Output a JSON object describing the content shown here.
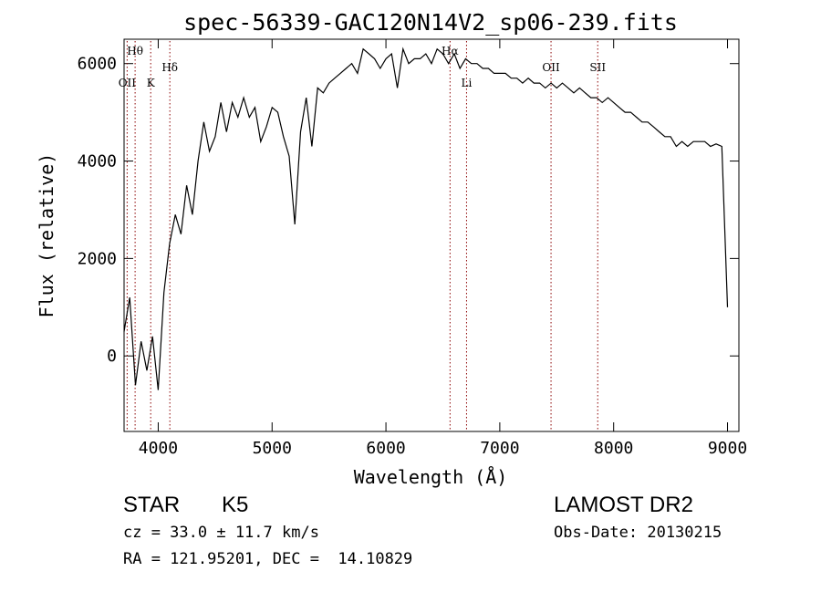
{
  "chart_data": {
    "type": "line",
    "title": "spec-56339-GAC120N14V2_sp06-239.fits",
    "xlabel": "Wavelength (Å)",
    "ylabel": "Flux (relative)",
    "xlim": [
      3700,
      9100
    ],
    "ylim": [
      -1550,
      6500
    ],
    "xticks": [
      4000,
      5000,
      6000,
      7000,
      8000,
      9000
    ],
    "yticks": [
      0,
      2000,
      4000,
      6000
    ],
    "grid": false,
    "line_color": "#000000",
    "marker_line_color": "#8b0000",
    "lines": [
      {
        "label": "OII",
        "x": 3727,
        "row": "low"
      },
      {
        "label": "Hθ",
        "x": 3797,
        "row": "top"
      },
      {
        "label": "K",
        "x": 3934,
        "row": "low"
      },
      {
        "label": "Hδ",
        "x": 4102,
        "row": "mid"
      },
      {
        "label": "Hα",
        "x": 6563,
        "row": "top"
      },
      {
        "label": "Li",
        "x": 6708,
        "row": "low"
      },
      {
        "label": "OII",
        "x": 7450,
        "row": "mid"
      },
      {
        "label": "SII",
        "x": 7860,
        "row": "mid"
      }
    ],
    "x": [
      3700,
      3750,
      3800,
      3850,
      3900,
      3950,
      4000,
      4050,
      4100,
      4150,
      4200,
      4250,
      4300,
      4350,
      4400,
      4450,
      4500,
      4550,
      4600,
      4650,
      4700,
      4750,
      4800,
      4850,
      4900,
      4950,
      5000,
      5050,
      5100,
      5150,
      5200,
      5250,
      5300,
      5350,
      5400,
      5450,
      5500,
      5550,
      5600,
      5650,
      5700,
      5750,
      5800,
      5850,
      5900,
      5950,
      6000,
      6050,
      6100,
      6150,
      6200,
      6250,
      6300,
      6350,
      6400,
      6450,
      6500,
      6550,
      6600,
      6650,
      6700,
      6750,
      6800,
      6850,
      6900,
      6950,
      7000,
      7050,
      7100,
      7150,
      7200,
      7250,
      7300,
      7350,
      7400,
      7450,
      7500,
      7550,
      7600,
      7650,
      7700,
      7750,
      7800,
      7850,
      7900,
      7950,
      8000,
      8050,
      8100,
      8150,
      8200,
      8250,
      8300,
      8350,
      8400,
      8450,
      8500,
      8550,
      8600,
      8650,
      8700,
      8750,
      8800,
      8850,
      8900,
      8950,
      9000
    ],
    "y": [
      500,
      1200,
      -600,
      300,
      -300,
      400,
      -700,
      1300,
      2300,
      2900,
      2500,
      3500,
      2900,
      4000,
      4800,
      4200,
      4500,
      5200,
      4600,
      5200,
      4900,
      5300,
      4900,
      5100,
      4400,
      4700,
      5100,
      5000,
      4500,
      4100,
      2700,
      4600,
      5300,
      4300,
      5500,
      5400,
      5600,
      5700,
      5800,
      5900,
      6000,
      5800,
      6300,
      6200,
      6100,
      5900,
      6100,
      6200,
      5500,
      6300,
      6000,
      6100,
      6100,
      6200,
      6000,
      6300,
      6200,
      6000,
      6200,
      5900,
      6100,
      6000,
      6000,
      5900,
      5900,
      5800,
      5800,
      5800,
      5700,
      5700,
      5600,
      5700,
      5600,
      5600,
      5500,
      5600,
      5500,
      5600,
      5500,
      5400,
      5500,
      5400,
      5300,
      5300,
      5200,
      5300,
      5200,
      5100,
      5000,
      5000,
      4900,
      4800,
      4800,
      4700,
      4600,
      4500,
      4500,
      4300,
      4400,
      4300,
      4400,
      4400,
      4400,
      4300,
      4350,
      4300,
      1000
    ]
  },
  "footer": {
    "object_class": "STAR",
    "subclass": "K5",
    "survey": "LAMOST DR2",
    "cz": "cz = 33.0 ± 11.7 km/s",
    "obs_date": "Obs-Date: 20130215",
    "radec": "RA = 121.95201, DEC =  14.10829"
  }
}
